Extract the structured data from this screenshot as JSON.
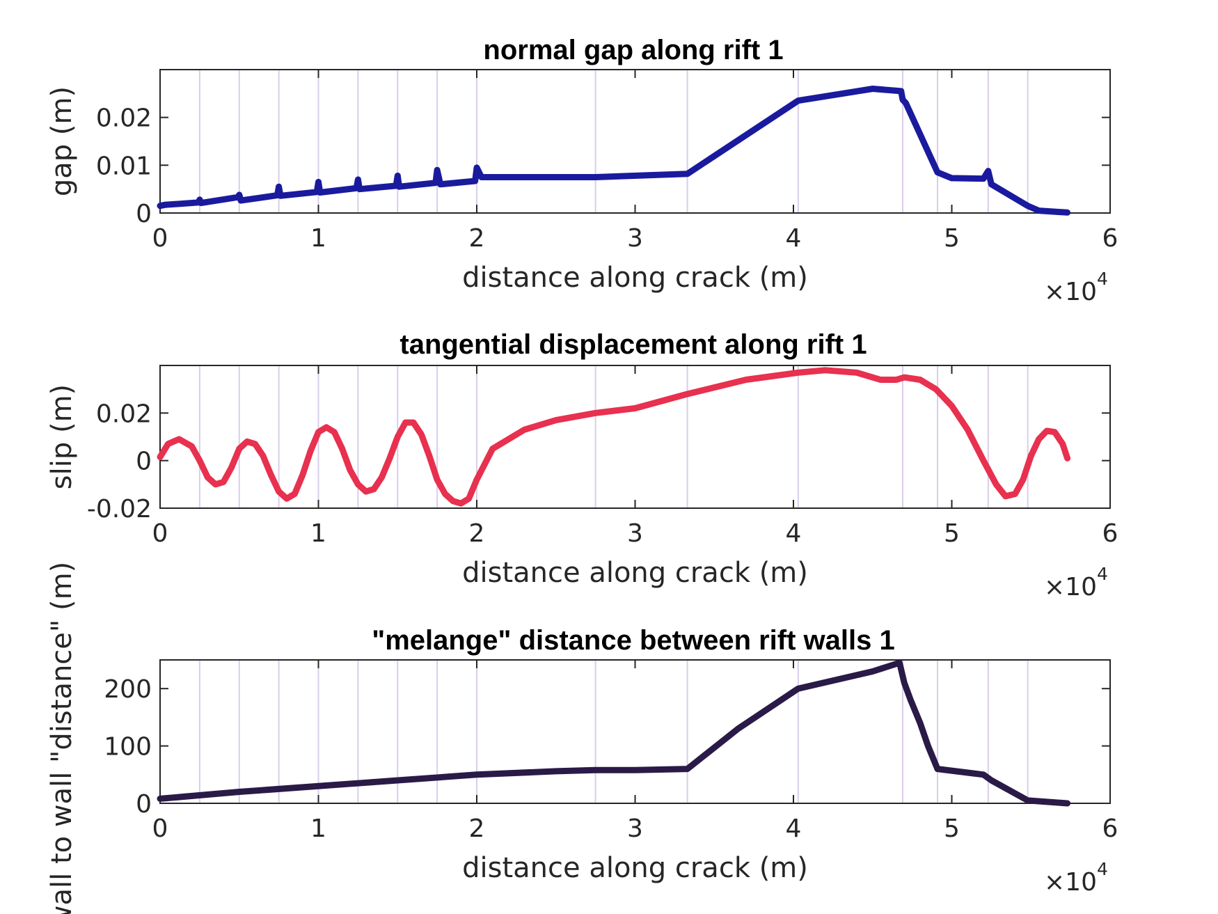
{
  "chart_data": [
    {
      "type": "line",
      "title": "normal gap along rift 1",
      "xlabel": "distance along crack (m)",
      "ylabel": "gap (m)",
      "x_multiplier": "×10",
      "x_multiplier_exponent": "4",
      "xlim": [
        0,
        60000
      ],
      "ylim": [
        0,
        0.03
      ],
      "xticks": [
        0,
        10000,
        20000,
        30000,
        40000,
        50000,
        60000
      ],
      "xtick_labels": [
        "0",
        "1",
        "2",
        "3",
        "4",
        "5",
        "6"
      ],
      "yticks": [
        0,
        0.01,
        0.02
      ],
      "ytick_labels": [
        "0",
        "0.01",
        "0.02"
      ],
      "grid": false,
      "vertical_markers": [
        2500,
        5000,
        7500,
        10000,
        12500,
        15000,
        17500,
        20000,
        27500,
        33300,
        40300,
        46900,
        49100,
        52300,
        54800
      ],
      "series": [
        {
          "color": "#1a1a9e",
          "x": [
            0,
            300,
            2400,
            2500,
            2600,
            4900,
            5000,
            5100,
            7400,
            7500,
            7600,
            9900,
            10000,
            10100,
            12400,
            12500,
            12600,
            14900,
            15000,
            15100,
            17400,
            17500,
            17700,
            19900,
            20000,
            20300,
            27500,
            33300,
            40300,
            45000,
            46800,
            46900,
            47100,
            49100,
            50000,
            52000,
            52300,
            52500,
            54800,
            55500,
            57300
          ],
          "y": [
            0.0015,
            0.0017,
            0.0022,
            0.0028,
            0.0021,
            0.0033,
            0.0038,
            0.0026,
            0.0037,
            0.0055,
            0.0036,
            0.0044,
            0.0065,
            0.0043,
            0.0052,
            0.007,
            0.005,
            0.0057,
            0.0078,
            0.0055,
            0.0063,
            0.009,
            0.006,
            0.0067,
            0.0095,
            0.0075,
            0.0075,
            0.0082,
            0.0235,
            0.026,
            0.0255,
            0.0237,
            0.023,
            0.0085,
            0.0073,
            0.0072,
            0.0088,
            0.006,
            0.0015,
            0.0005,
            0.0001
          ]
        }
      ]
    },
    {
      "type": "line",
      "title": "tangential displacement along rift 1",
      "xlabel": "distance along crack (m)",
      "ylabel": "slip (m)",
      "x_multiplier": "×10",
      "x_multiplier_exponent": "4",
      "xlim": [
        0,
        60000
      ],
      "ylim": [
        -0.02,
        0.04
      ],
      "xticks": [
        0,
        10000,
        20000,
        30000,
        40000,
        50000,
        60000
      ],
      "xtick_labels": [
        "0",
        "1",
        "2",
        "3",
        "4",
        "5",
        "6"
      ],
      "yticks": [
        -0.02,
        0,
        0.02
      ],
      "ytick_labels": [
        "-0.02",
        "0",
        "0.02"
      ],
      "grid": false,
      "vertical_markers": [
        2500,
        5000,
        7500,
        10000,
        12500,
        15000,
        17500,
        20000,
        27500,
        33300,
        40300,
        46900,
        49100,
        52300,
        54800
      ],
      "series": [
        {
          "color": "#e8304f",
          "x": [
            0,
            500,
            1200,
            2000,
            2500,
            3000,
            3500,
            4000,
            4500,
            5000,
            5500,
            6000,
            6500,
            7000,
            7500,
            8000,
            8500,
            9000,
            9500,
            10000,
            10500,
            11000,
            11500,
            12000,
            12500,
            13000,
            13500,
            14000,
            14500,
            15000,
            15500,
            16000,
            16500,
            17000,
            17500,
            18000,
            18500,
            19000,
            19500,
            20000,
            21000,
            23000,
            25000,
            27500,
            30000,
            33300,
            37000,
            40300,
            42000,
            44000,
            45500,
            46500,
            47000,
            48000,
            49000,
            50000,
            51000,
            52000,
            52800,
            53400,
            54000,
            54500,
            55000,
            55500,
            56000,
            56500,
            57000,
            57300
          ],
          "y": [
            0.0015,
            0.007,
            0.009,
            0.006,
            0.0,
            -0.007,
            -0.01,
            -0.009,
            -0.003,
            0.005,
            0.008,
            0.007,
            0.002,
            -0.006,
            -0.013,
            -0.016,
            -0.014,
            -0.006,
            0.004,
            0.012,
            0.014,
            0.012,
            0.005,
            -0.004,
            -0.01,
            -0.013,
            -0.012,
            -0.007,
            0.001,
            0.01,
            0.016,
            0.016,
            0.011,
            0.002,
            -0.008,
            -0.014,
            -0.017,
            -0.018,
            -0.016,
            -0.008,
            0.005,
            0.013,
            0.017,
            0.02,
            0.022,
            0.028,
            0.034,
            0.037,
            0.038,
            0.037,
            0.034,
            0.034,
            0.035,
            0.034,
            0.03,
            0.023,
            0.013,
            0.0,
            -0.01,
            -0.015,
            -0.014,
            -0.008,
            0.002,
            0.009,
            0.0125,
            0.012,
            0.007,
            0.001
          ]
        }
      ]
    },
    {
      "type": "line",
      "title": "\"melange\" distance between rift walls 1",
      "xlabel": "distance along crack (m)",
      "ylabel": "wall to wall \"distance\" (m)",
      "x_multiplier": "×10",
      "x_multiplier_exponent": "4",
      "xlim": [
        0,
        60000
      ],
      "ylim": [
        0,
        250
      ],
      "xticks": [
        0,
        10000,
        20000,
        30000,
        40000,
        50000,
        60000
      ],
      "xtick_labels": [
        "0",
        "1",
        "2",
        "3",
        "4",
        "5",
        "6"
      ],
      "yticks": [
        0,
        100,
        200
      ],
      "ytick_labels": [
        "0",
        "100",
        "200"
      ],
      "grid": false,
      "vertical_markers": [
        2500,
        5000,
        7500,
        10000,
        12500,
        15000,
        17500,
        20000,
        27500,
        33300,
        40300,
        46900,
        49100,
        52300,
        54800
      ],
      "series": [
        {
          "color": "#2a1a47",
          "x": [
            0,
            5000,
            10000,
            15000,
            20000,
            25000,
            27500,
            30000,
            33300,
            36500,
            40300,
            45000,
            46700,
            47000,
            47400,
            48000,
            48500,
            49100,
            52000,
            52500,
            54800,
            57300
          ],
          "y": [
            8,
            20,
            30,
            40,
            50,
            56,
            58,
            58,
            60,
            130,
            200,
            230,
            245,
            210,
            180,
            140,
            100,
            60,
            50,
            40,
            5,
            0
          ]
        }
      ]
    }
  ]
}
